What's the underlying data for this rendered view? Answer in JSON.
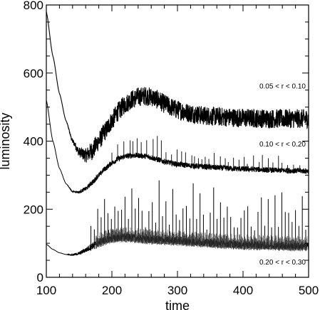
{
  "chart_data": {
    "type": "line",
    "title": "",
    "xlabel": "time",
    "ylabel": "luminosity",
    "xlim": [
      100,
      500
    ],
    "ylim": [
      0,
      800
    ],
    "xticks": [
      100,
      200,
      300,
      400,
      500
    ],
    "yticks": [
      0,
      200,
      400,
      600,
      800
    ],
    "xtick_labels": [
      "100",
      "200",
      "300",
      "400",
      "500"
    ],
    "ytick_labels": [
      "0",
      "200",
      "400",
      "600",
      "800"
    ],
    "grid": false,
    "series": [
      {
        "label": "0.05 < r < 0.10",
        "color": "#000000",
        "noise_band": 28,
        "x": [
          100,
          110,
          120,
          130,
          140,
          150,
          160,
          170,
          180,
          190,
          200,
          210,
          220,
          230,
          240,
          250,
          260,
          270,
          280,
          290,
          300,
          320,
          340,
          360,
          380,
          400,
          420,
          440,
          460,
          480,
          500
        ],
        "y": [
          780,
          650,
          540,
          460,
          400,
          368,
          358,
          372,
          400,
          430,
          460,
          488,
          508,
          522,
          530,
          533,
          530,
          522,
          510,
          500,
          492,
          482,
          475,
          472,
          470,
          468,
          467,
          466,
          466,
          466,
          466
        ]
      },
      {
        "label": "0.10 < r < 0.20",
        "color": "#000000",
        "noise_band": 8,
        "x": [
          100,
          110,
          120,
          130,
          140,
          150,
          160,
          170,
          180,
          190,
          200,
          210,
          220,
          230,
          240,
          250,
          260,
          270,
          280,
          290,
          300,
          320,
          340,
          360,
          380,
          400,
          420,
          440,
          460,
          480,
          500
        ],
        "y": [
          520,
          400,
          320,
          275,
          252,
          250,
          260,
          278,
          300,
          320,
          336,
          348,
          355,
          358,
          358,
          356,
          352,
          346,
          340,
          336,
          332,
          328,
          325,
          322,
          320,
          318,
          317,
          315,
          314,
          313,
          312
        ]
      },
      {
        "label": "0.20 < r < 0.30",
        "color": "#000000",
        "noise_band": 10,
        "x": [
          100,
          110,
          120,
          130,
          140,
          150,
          160,
          170,
          180,
          190,
          200,
          210,
          220,
          230,
          240,
          250,
          260,
          280,
          300,
          320,
          340,
          360,
          380,
          400,
          420,
          440,
          460,
          480,
          500
        ],
        "y": [
          97,
          82,
          72,
          67,
          66,
          70,
          80,
          92,
          103,
          110,
          115,
          117,
          118,
          117,
          115,
          113,
          112,
          110,
          108,
          105,
          103,
          100,
          98,
          96,
          95,
          94,
          93,
          92,
          92
        ],
        "spike_peak_max": 285
      }
    ],
    "annotations": [
      {
        "text": "0.05 < r < 0.10",
        "x": 500,
        "y": 555
      },
      {
        "text": "0.10 < r < 0.20",
        "x": 500,
        "y": 384
      },
      {
        "text": "0.20 < r < 0.30",
        "x": 500,
        "y": 38
      }
    ]
  }
}
